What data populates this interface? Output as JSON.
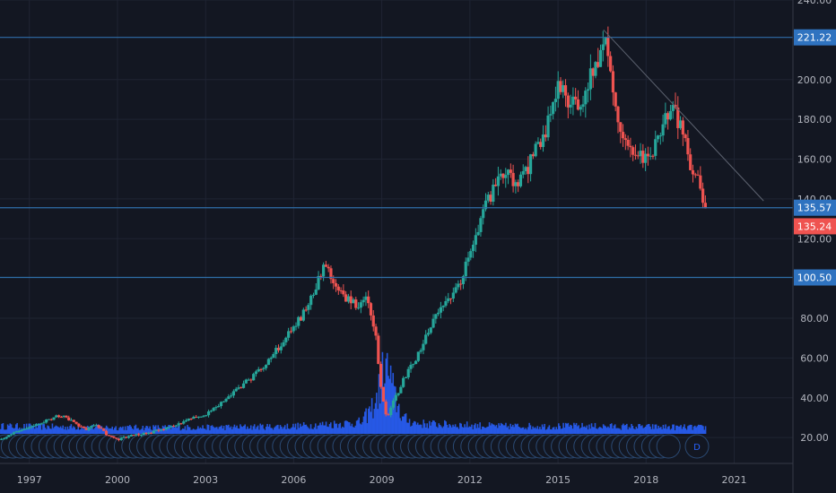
{
  "colors": {
    "background": "#131722",
    "grid": "#1f2433",
    "up": "#26a69a",
    "down": "#ef5350",
    "volume": "#2962ff",
    "level_line": "#2f6ea8",
    "level_label_bg": "#2f73c0",
    "last_price_bg": "#ef5350",
    "trend_line": "#5d6370",
    "axis_text": "#b2b5be"
  },
  "chart_data": {
    "type": "candlestick",
    "interval_marker": "D",
    "x_range": [
      1996.0,
      2023.0
    ],
    "ylim": [
      7,
      240
    ],
    "y_ticks": [
      {
        "value": 240,
        "label": "240.00"
      },
      {
        "value": 200,
        "label": "200.00"
      },
      {
        "value": 180,
        "label": "180.00"
      },
      {
        "value": 160,
        "label": "160.00"
      },
      {
        "value": 140,
        "label": "140.00"
      },
      {
        "value": 120,
        "label": "120.00"
      },
      {
        "value": 80,
        "label": "80.00"
      },
      {
        "value": 60,
        "label": "60.00"
      },
      {
        "value": 40,
        "label": "40.00"
      },
      {
        "value": 20,
        "label": "20.00"
      }
    ],
    "x_ticks": [
      {
        "value": 1997,
        "label": "1997"
      },
      {
        "value": 2000,
        "label": "2000"
      },
      {
        "value": 2003,
        "label": "2003"
      },
      {
        "value": 2006,
        "label": "2006"
      },
      {
        "value": 2009,
        "label": "2009"
      },
      {
        "value": 2012,
        "label": "2012"
      },
      {
        "value": 2015,
        "label": "2015"
      },
      {
        "value": 2018,
        "label": "2018"
      },
      {
        "value": 2021,
        "label": "2021"
      }
    ],
    "horizontal_levels": [
      {
        "value": 221.22,
        "label": "221.22"
      },
      {
        "value": 135.57,
        "label": "135.57"
      },
      {
        "value": 100.5,
        "label": "100.50"
      }
    ],
    "last_price": {
      "value": 135.24,
      "label": "135.24"
    },
    "trend_line": {
      "start": {
        "x": 2016.55,
        "y": 225
      },
      "end": {
        "x": 2022.0,
        "y": 139
      }
    },
    "price_path": [
      [
        1996.0,
        19
      ],
      [
        1996.5,
        22
      ],
      [
        1997.0,
        25
      ],
      [
        1997.5,
        28
      ],
      [
        1998.0,
        31
      ],
      [
        1998.3,
        30
      ],
      [
        1998.7,
        26
      ],
      [
        1999.0,
        24
      ],
      [
        1999.3,
        27
      ],
      [
        1999.7,
        21
      ],
      [
        2000.0,
        19
      ],
      [
        2000.5,
        21
      ],
      [
        2001.0,
        22
      ],
      [
        2001.5,
        24
      ],
      [
        2002.0,
        26
      ],
      [
        2002.5,
        30
      ],
      [
        2003.0,
        31
      ],
      [
        2003.5,
        37
      ],
      [
        2004.0,
        43
      ],
      [
        2004.5,
        49
      ],
      [
        2005.0,
        55
      ],
      [
        2005.5,
        65
      ],
      [
        2006.0,
        75
      ],
      [
        2006.5,
        85
      ],
      [
        2006.9,
        100
      ],
      [
        2007.1,
        110
      ],
      [
        2007.4,
        95
      ],
      [
        2007.8,
        90
      ],
      [
        2008.2,
        86
      ],
      [
        2008.5,
        91
      ],
      [
        2008.8,
        75
      ],
      [
        2009.0,
        45
      ],
      [
        2009.2,
        30
      ],
      [
        2009.5,
        40
      ],
      [
        2009.8,
        50
      ],
      [
        2010.2,
        60
      ],
      [
        2010.6,
        72
      ],
      [
        2011.0,
        85
      ],
      [
        2011.5,
        92
      ],
      [
        2011.8,
        102
      ],
      [
        2012.2,
        118
      ],
      [
        2012.6,
        138
      ],
      [
        2013.0,
        148
      ],
      [
        2013.3,
        155
      ],
      [
        2013.6,
        145
      ],
      [
        2013.9,
        152
      ],
      [
        2014.3,
        165
      ],
      [
        2014.7,
        178
      ],
      [
        2015.0,
        196
      ],
      [
        2015.4,
        190
      ],
      [
        2015.8,
        188
      ],
      [
        2016.1,
        200
      ],
      [
        2016.4,
        210
      ],
      [
        2016.6,
        225
      ],
      [
        2016.8,
        205
      ],
      [
        2017.0,
        185
      ],
      [
        2017.4,
        168
      ],
      [
        2017.8,
        162
      ],
      [
        2018.1,
        160
      ],
      [
        2018.4,
        168
      ],
      [
        2018.7,
        185
      ],
      [
        2019.0,
        183
      ],
      [
        2019.3,
        172
      ],
      [
        2019.6,
        155
      ],
      [
        2019.85,
        147
      ],
      [
        2020.0,
        135
      ]
    ],
    "volume_path": [
      [
        1996.0,
        0.6
      ],
      [
        2000.0,
        0.5
      ],
      [
        2003.0,
        0.5
      ],
      [
        2006.0,
        0.6
      ],
      [
        2008.3,
        0.9
      ],
      [
        2008.8,
        2.6
      ],
      [
        2009.0,
        4.6
      ],
      [
        2009.2,
        5.0
      ],
      [
        2009.4,
        3.0
      ],
      [
        2009.7,
        1.2
      ],
      [
        2010.2,
        0.8
      ],
      [
        2013.0,
        0.6
      ],
      [
        2016.0,
        0.6
      ],
      [
        2020.0,
        0.5
      ]
    ]
  }
}
